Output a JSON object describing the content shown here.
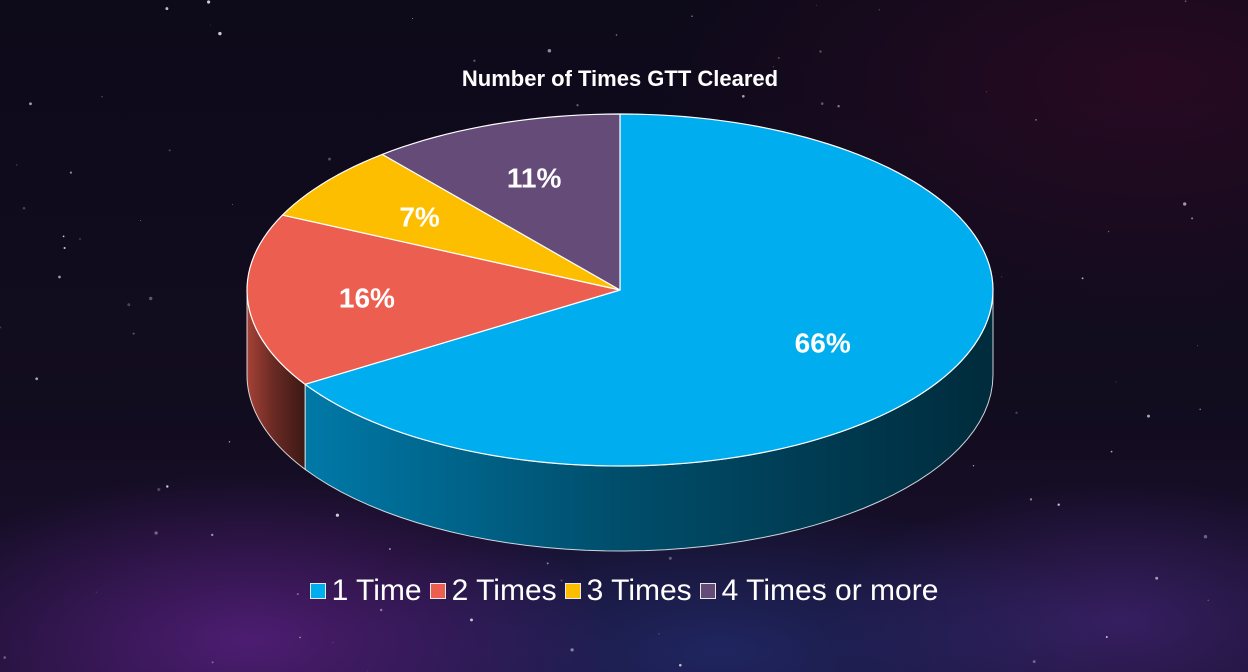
{
  "chart_data": {
    "type": "pie",
    "title": "Number of Times GTT Cleared",
    "categories": [
      "1 Time",
      "2 Times",
      "3 Times",
      "4 Times or more"
    ],
    "values": [
      66,
      16,
      7,
      11
    ],
    "data_labels": [
      "66%",
      "16%",
      "7%",
      "11%"
    ],
    "colors": [
      "#00ADEF",
      "#EC5E4F",
      "#FDBE00",
      "#654B78"
    ],
    "legend_position": "bottom",
    "style": "3d"
  }
}
